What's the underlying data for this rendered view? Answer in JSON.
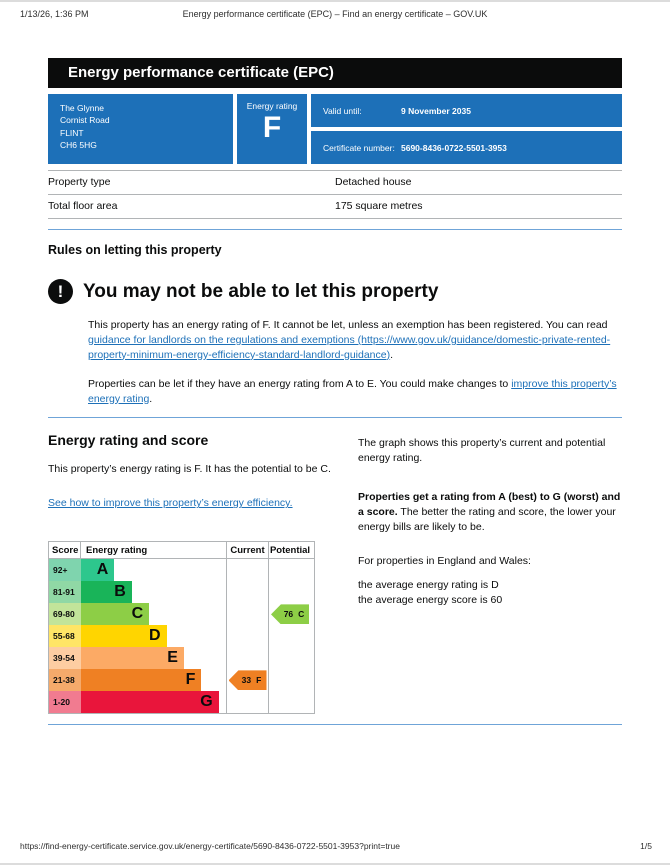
{
  "print_header": {
    "datetime": "1/13/26, 1:36 PM",
    "doc_title": "Energy performance certificate (EPC) – Find an energy certificate – GOV.UK"
  },
  "print_footer": {
    "url": "https://find-energy-certificate.service.gov.uk/energy-certificate/5690-8436-0722-5501-3953?print=true",
    "page_number": "1/5"
  },
  "banner": {
    "title": "Energy performance certificate (EPC)"
  },
  "summary": {
    "address_lines": [
      "The Glynne",
      "Cornist Road",
      "FLINT",
      "CH6 5HG"
    ],
    "rating_label": "Energy rating",
    "rating": "F",
    "valid_until_label": "Valid until:",
    "valid_until": "9 November 2035",
    "certificate_number_label": "Certificate number:",
    "certificate_number": "5690-8436-0722-5501-3953"
  },
  "property_table": {
    "rows": [
      {
        "label": "Property type",
        "value": "Detached house"
      },
      {
        "label": "Total floor area",
        "value": "175 square metres"
      }
    ]
  },
  "rules": {
    "heading": "Rules on letting this property",
    "warning_icon": "!",
    "warning_heading": "You may not be able to let this property",
    "p1_text1": "This property has an energy rating of F. It cannot be let, unless an exemption has been registered. You can read ",
    "p1_link": "guidance for landlords on the regulations and exemptions (https://www.gov.uk/guidance/domestic-private-rented-property-minimum-energy-efficiency-standard-landlord-guidance)",
    "p1_text2": ".",
    "p2_text1": "Properties can be let if they have an energy rating from A to E. You could make changes to ",
    "p2_link": "improve this property’s energy rating",
    "p2_text2": "."
  },
  "rating_section": {
    "heading": "Energy rating and score",
    "intro": "This property’s energy rating is F. It has the potential to be C.",
    "improve_link": "See how to improve this property’s energy efficiency.",
    "right_p1": "The graph shows this property’s current and potential energy rating.",
    "right_p2_bold": "Properties get a rating from A (best) to G (worst) and a score.",
    "right_p2_rest": " The better the rating and score, the lower your energy bills are likely to be.",
    "right_p3": "For properties in England and Wales:",
    "right_p4_line1": "the average energy rating is D",
    "right_p4_line2": "the average energy score is 60"
  },
  "chart_data": {
    "type": "epc-rating-graph",
    "headers": [
      "Score",
      "Energy rating",
      "Current",
      "Potential"
    ],
    "bands": [
      {
        "score_range": "92+",
        "letter": "A",
        "color": "#2dc78d",
        "tint": "#7fd4ae",
        "bar_pct": 23
      },
      {
        "score_range": "81-91",
        "letter": "B",
        "color": "#19b459",
        "tint": "#90d8a5",
        "bar_pct": 35
      },
      {
        "score_range": "69-80",
        "letter": "C",
        "color": "#8dce46",
        "tint": "#c2e49a",
        "bar_pct": 47
      },
      {
        "score_range": "55-68",
        "letter": "D",
        "color": "#ffd500",
        "tint": "#ffe566",
        "bar_pct": 59
      },
      {
        "score_range": "39-54",
        "letter": "E",
        "color": "#fcaa65",
        "tint": "#fdcda2",
        "bar_pct": 71
      },
      {
        "score_range": "21-38",
        "letter": "F",
        "color": "#ef8023",
        "tint": "#f5aa6b",
        "bar_pct": 83
      },
      {
        "score_range": "1-20",
        "letter": "G",
        "color": "#e9153b",
        "tint": "#f17b90",
        "bar_pct": 95
      }
    ],
    "current": {
      "score": "33",
      "letter": "F",
      "band_index": 5,
      "color": "#ef8023"
    },
    "potential": {
      "score": "76",
      "letter": "C",
      "band_index": 2,
      "color": "#8dce46"
    }
  },
  "colors": {
    "govuk_blue": "#1d70b8",
    "banner_black": "#0b0c0c",
    "link_blue": "#1d70b8",
    "border_gray": "#b1b4b6",
    "rule_blue": "#6fa4d8"
  }
}
